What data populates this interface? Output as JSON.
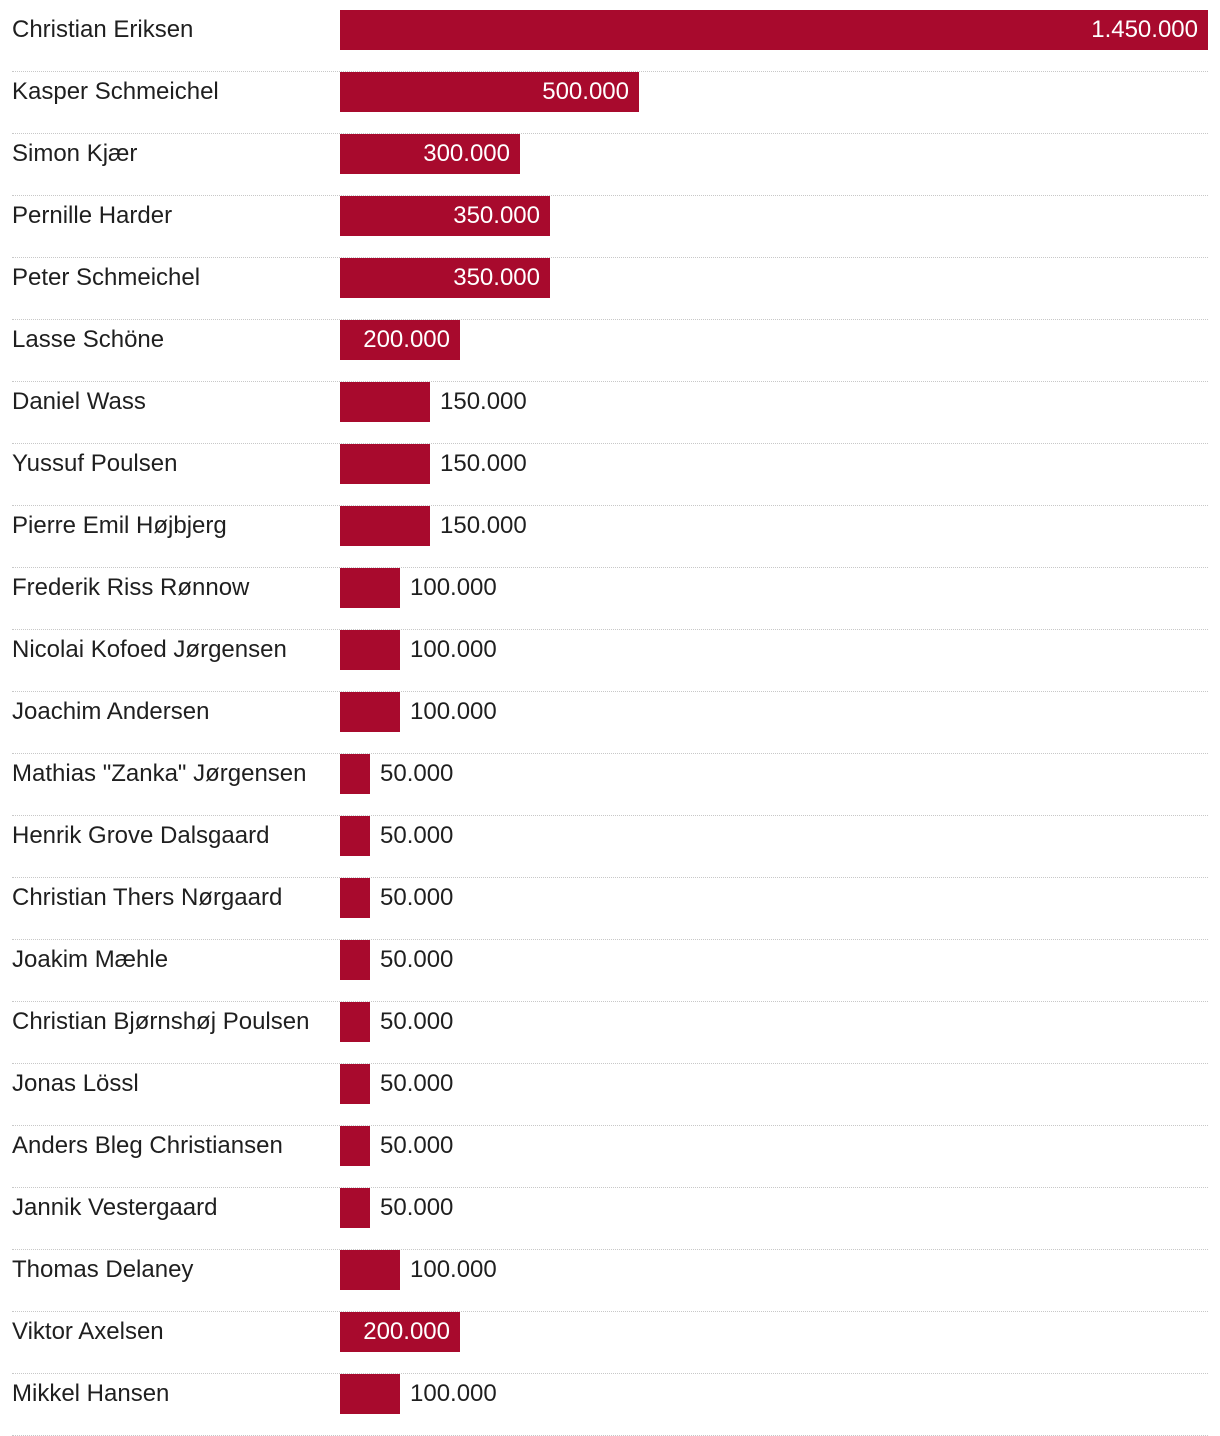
{
  "chart_data": {
    "type": "bar",
    "orientation": "horizontal",
    "bar_color": "#a80a2d",
    "categories": [
      "Christian Eriksen",
      "Kasper Schmeichel",
      "Simon Kjær",
      "Pernille Harder",
      "Peter Schmeichel",
      "Lasse Schöne",
      "Daniel Wass",
      "Yussuf Poulsen",
      "Pierre Emil Højbjerg",
      "Frederik Riss Rønnow",
      "Nicolai Kofoed Jørgensen",
      "Joachim Andersen",
      "Mathias \"Zanka\" Jørgensen",
      "Henrik Grove Dalsgaard",
      "Christian Thers Nørgaard",
      "Joakim Mæhle",
      "Christian Bjørnshøj Poulsen",
      "Jonas Lössl",
      "Anders Bleg Christiansen",
      "Jannik Vestergaard",
      "Thomas Delaney",
      "Viktor Axelsen",
      "Mikkel Hansen"
    ],
    "values": [
      1450000,
      500000,
      300000,
      350000,
      350000,
      200000,
      150000,
      150000,
      150000,
      100000,
      100000,
      100000,
      50000,
      50000,
      50000,
      50000,
      50000,
      50000,
      50000,
      50000,
      100000,
      200000,
      100000
    ],
    "value_labels": [
      "1.450.000",
      "500.000",
      "300.000",
      "350.000",
      "350.000",
      "200.000",
      "150.000",
      "150.000",
      "150.000",
      "100.000",
      "100.000",
      "100.000",
      "50.000",
      "50.000",
      "50.000",
      "50.000",
      "50.000",
      "50.000",
      "50.000",
      "50.000",
      "100.000",
      "200.000",
      "100.000"
    ],
    "xlim": [
      0,
      1450000
    ],
    "grid": false,
    "legend": "none",
    "title": "",
    "xlabel": "",
    "ylabel": ""
  }
}
